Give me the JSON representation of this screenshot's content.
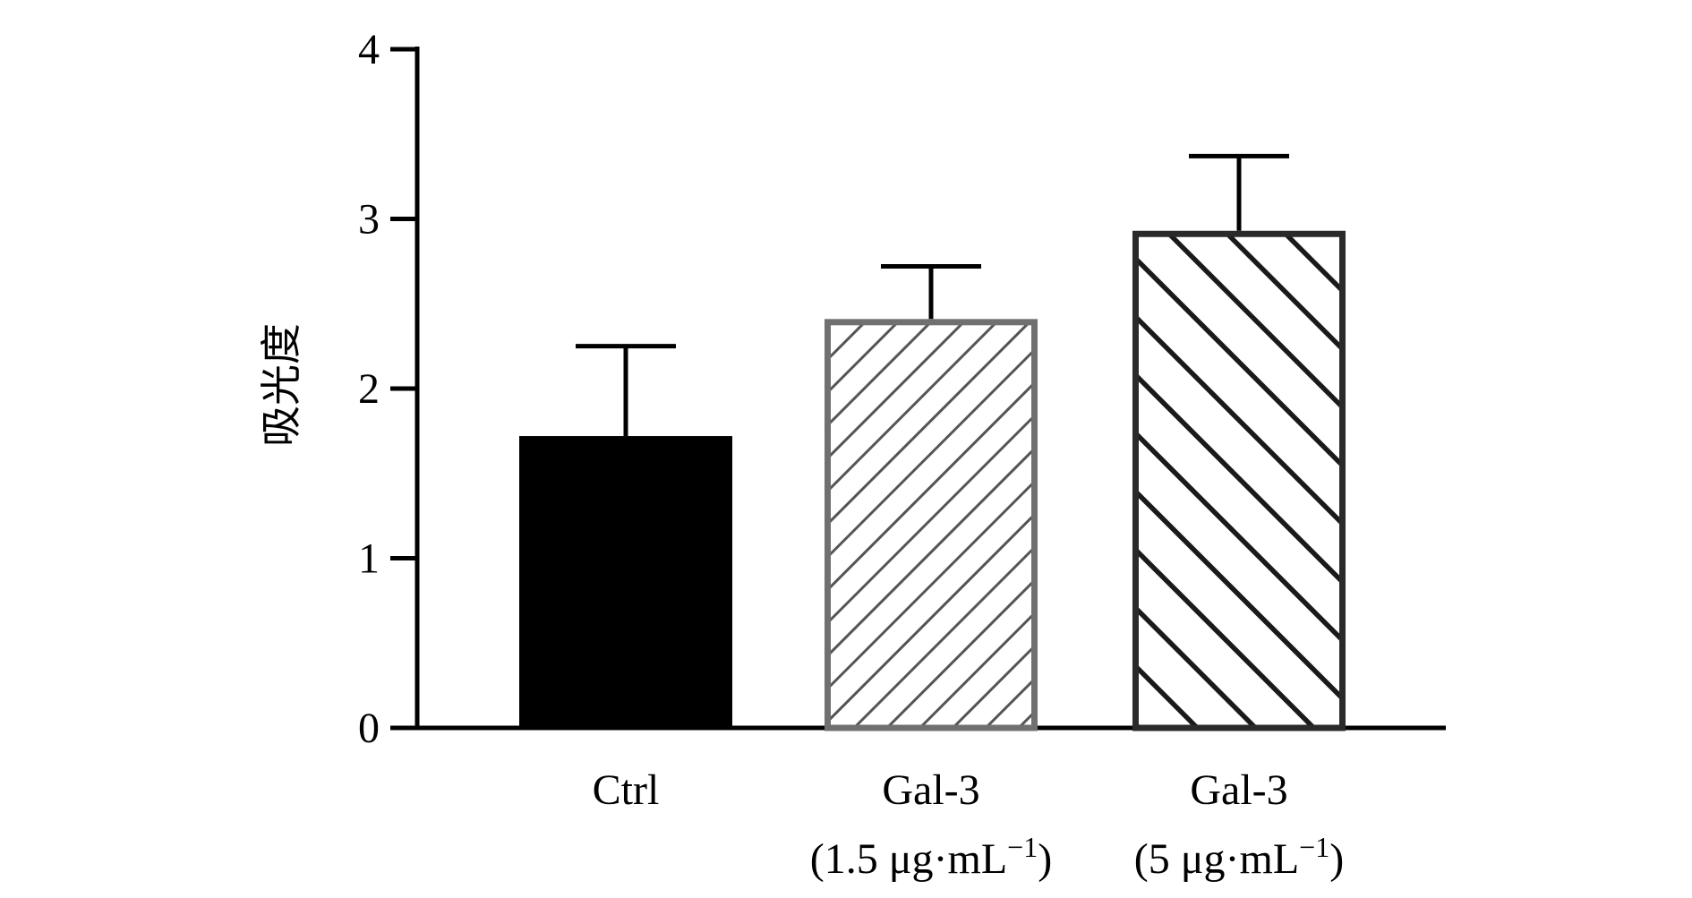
{
  "chart_data": {
    "type": "bar",
    "title": "",
    "xlabel": "",
    "ylabel": "吸光度",
    "ylim": [
      0,
      4
    ],
    "yticks": [
      0,
      1,
      2,
      3,
      4
    ],
    "grid": false,
    "categories": [
      {
        "line1": "Ctrl",
        "line2": ""
      },
      {
        "line1": "Gal-3",
        "line2": "(1.5 μg·mL",
        "line2_sup": "−1",
        "line2_end": ")"
      },
      {
        "line1": "Gal-3",
        "line2": "(5 μg·mL",
        "line2_sup": "−1",
        "line2_end": ")"
      }
    ],
    "values": [
      1.72,
      2.41,
      2.93
    ],
    "errors": [
      0.53,
      0.31,
      0.44
    ],
    "styles": [
      {
        "fill": "solid",
        "color": "#000000"
      },
      {
        "fill": "thin-hatch",
        "color": "#707070"
      },
      {
        "fill": "thick-hatch",
        "color": "#2a2a2a"
      }
    ]
  }
}
